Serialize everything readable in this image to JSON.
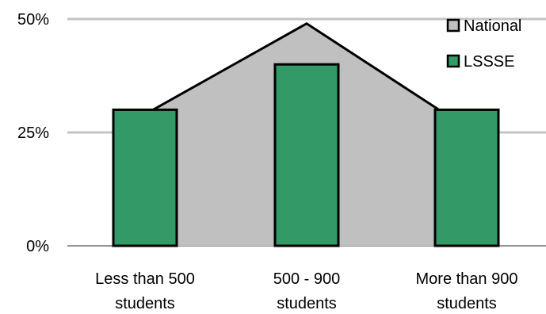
{
  "chart_data": {
    "type": "bar",
    "title": "",
    "xlabel": "",
    "ylabel": "",
    "categories": [
      [
        "Less than 500",
        "students"
      ],
      [
        "500 - 900",
        "students"
      ],
      [
        "More than 900",
        "students"
      ]
    ],
    "series": [
      {
        "name": "National",
        "type": "area",
        "values": [
          29,
          49,
          26
        ],
        "color": "#c0c0c0",
        "line_color": "#000000"
      },
      {
        "name": "LSSSE",
        "type": "bar",
        "values": [
          30,
          40,
          30
        ],
        "color": "#339966",
        "line_color": "#000000"
      }
    ],
    "ylim": [
      0,
      50
    ],
    "yticks": [
      0,
      25,
      50
    ],
    "ytick_labels": [
      "0%",
      "25%",
      "50%"
    ],
    "grid": true,
    "legend_position": "top-right"
  }
}
